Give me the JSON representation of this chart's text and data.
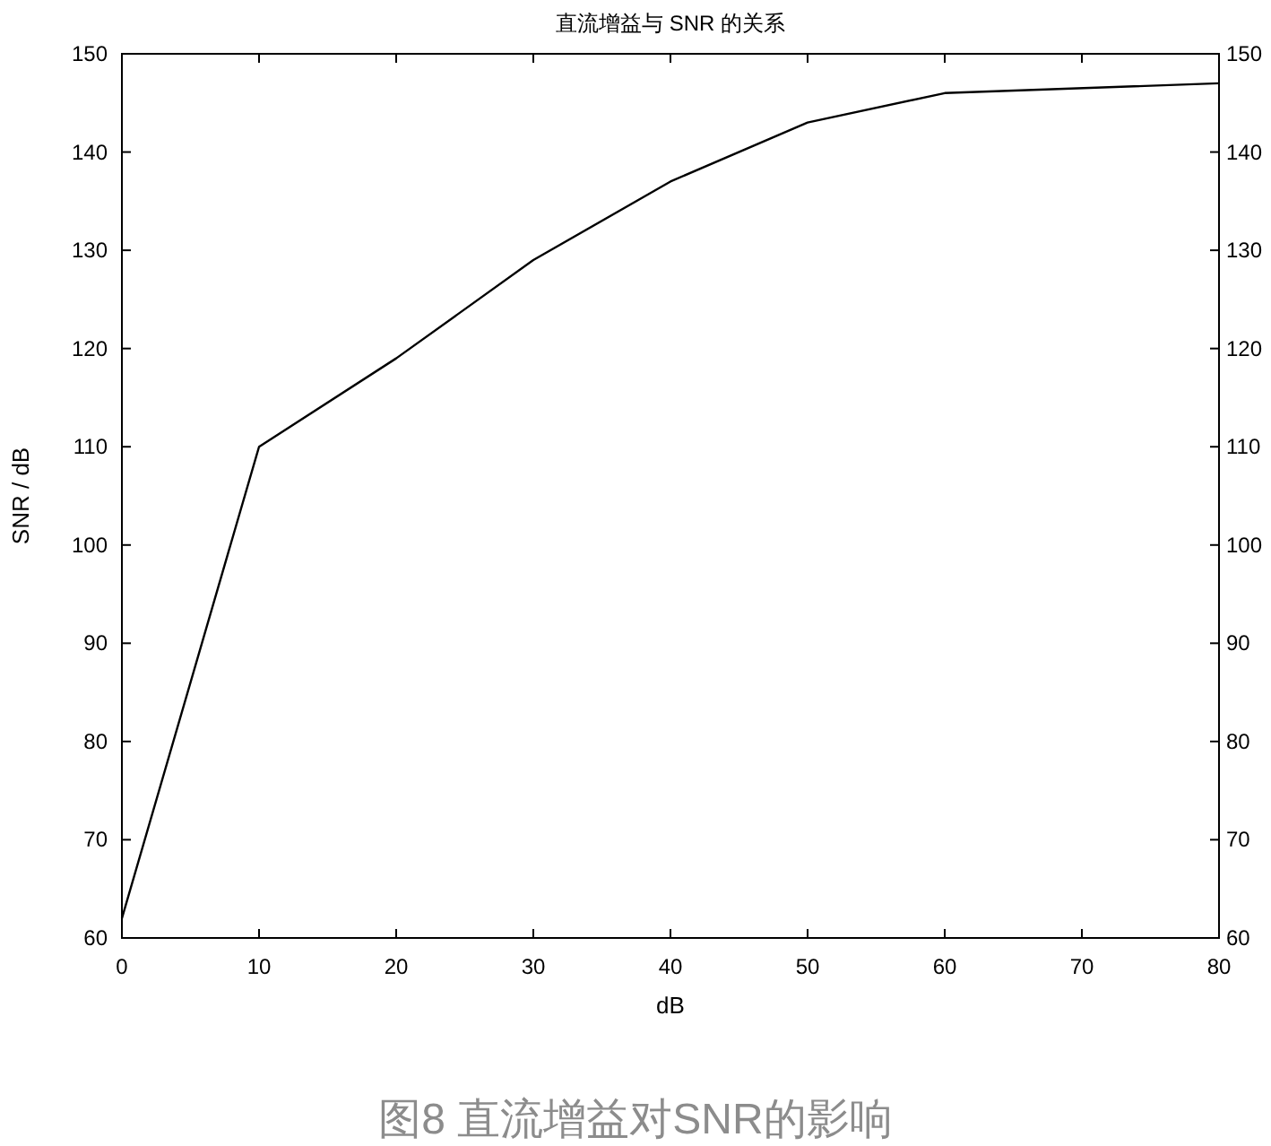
{
  "chart_data": {
    "type": "line",
    "title": "直流增益与 SNR 的关系",
    "xlabel": "dB",
    "ylabel": "SNR / dB",
    "x": [
      0,
      10,
      20,
      30,
      40,
      50,
      60,
      80
    ],
    "series": [
      {
        "color": "#000000",
        "values": [
          62,
          110,
          119,
          129,
          137,
          143,
          146,
          147
        ]
      }
    ],
    "xlim": [
      0,
      80
    ],
    "xticks": [
      0,
      10,
      20,
      30,
      40,
      50,
      60,
      70,
      80
    ],
    "ylim": [
      60,
      150
    ],
    "yticks": [
      60,
      70,
      80,
      90,
      100,
      110,
      120,
      130,
      140,
      150
    ],
    "y2lim": [
      60,
      150
    ],
    "y2ticks": [
      60,
      70,
      80,
      90,
      100,
      110,
      120,
      130,
      140,
      150
    ],
    "annotations": [
      "图8 直流增益对SNR的影响"
    ]
  }
}
